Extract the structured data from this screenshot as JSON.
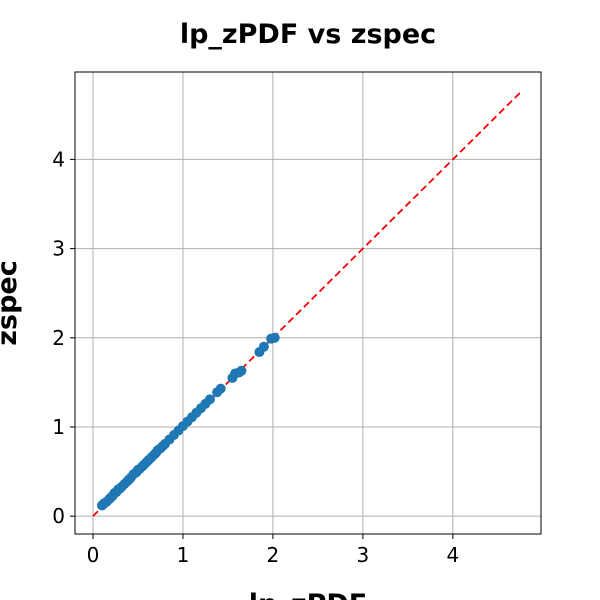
{
  "chart_data": {
    "type": "scatter",
    "title": "lp_zPDF vs zspec",
    "xlabel": "lp_zPDF",
    "ylabel": "zspec",
    "xlim": [
      -0.2,
      4.98
    ],
    "ylim": [
      -0.2,
      4.98
    ],
    "xticks": [
      "0",
      "1",
      "2",
      "3",
      "4"
    ],
    "yticks": [
      "0",
      "1",
      "2",
      "3",
      "4"
    ],
    "grid": true,
    "reference_line": {
      "style": "dashed",
      "color": "#ff0000",
      "from": [
        0,
        0
      ],
      "to": [
        4.75,
        4.75
      ]
    },
    "series": [
      {
        "color": "#1f77b4",
        "points": [
          [
            0.1,
            0.12
          ],
          [
            0.12,
            0.14
          ],
          [
            0.15,
            0.16
          ],
          [
            0.18,
            0.19
          ],
          [
            0.2,
            0.21
          ],
          [
            0.22,
            0.23
          ],
          [
            0.24,
            0.26
          ],
          [
            0.26,
            0.27
          ],
          [
            0.28,
            0.3
          ],
          [
            0.3,
            0.31
          ],
          [
            0.32,
            0.33
          ],
          [
            0.35,
            0.36
          ],
          [
            0.38,
            0.39
          ],
          [
            0.4,
            0.41
          ],
          [
            0.42,
            0.43
          ],
          [
            0.45,
            0.47
          ],
          [
            0.48,
            0.49
          ],
          [
            0.5,
            0.52
          ],
          [
            0.52,
            0.53
          ],
          [
            0.55,
            0.56
          ],
          [
            0.57,
            0.58
          ],
          [
            0.6,
            0.61
          ],
          [
            0.62,
            0.63
          ],
          [
            0.65,
            0.66
          ],
          [
            0.68,
            0.69
          ],
          [
            0.7,
            0.71
          ],
          [
            0.72,
            0.74
          ],
          [
            0.75,
            0.76
          ],
          [
            0.78,
            0.79
          ],
          [
            0.8,
            0.81
          ],
          [
            0.85,
            0.86
          ],
          [
            0.9,
            0.91
          ],
          [
            0.95,
            0.96
          ],
          [
            1.0,
            1.01
          ],
          [
            1.05,
            1.06
          ],
          [
            1.1,
            1.11
          ],
          [
            1.15,
            1.16
          ],
          [
            1.2,
            1.21
          ],
          [
            1.25,
            1.26
          ],
          [
            1.3,
            1.31
          ],
          [
            1.38,
            1.39
          ],
          [
            1.42,
            1.43
          ],
          [
            1.55,
            1.55
          ],
          [
            1.58,
            1.6
          ],
          [
            1.62,
            1.61
          ],
          [
            1.65,
            1.63
          ],
          [
            1.85,
            1.84
          ],
          [
            1.9,
            1.9
          ],
          [
            1.98,
            1.99
          ],
          [
            2.02,
            2.0
          ]
        ]
      }
    ]
  }
}
